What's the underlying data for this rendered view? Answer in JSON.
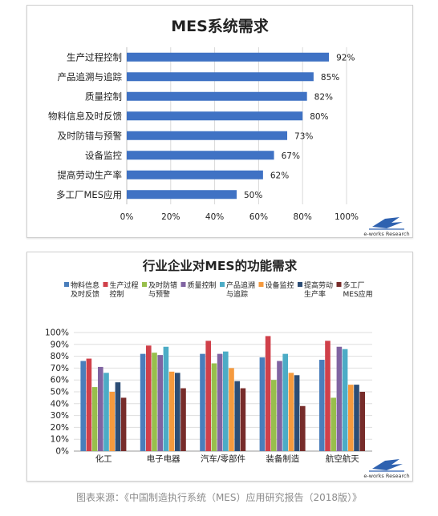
{
  "chart_data": [
    {
      "type": "bar",
      "orientation": "horizontal",
      "title": "MES系统需求",
      "categories": [
        "生产过程控制",
        "产品追溯与追踪",
        "质量控制",
        "物料信息及时反馈",
        "及时防错与预警",
        "设备监控",
        "提高劳动生产率",
        "多工厂MES应用"
      ],
      "values": [
        92,
        85,
        82,
        80,
        73,
        67,
        62,
        50
      ],
      "value_labels": [
        "92%",
        "85%",
        "82%",
        "80%",
        "73%",
        "67%",
        "62%",
        "50%"
      ],
      "xticks": [
        "0%",
        "20%",
        "40%",
        "60%",
        "80%",
        "100%"
      ],
      "xlim": [
        0,
        100
      ],
      "color": "#3f72c4",
      "grid": true
    },
    {
      "type": "bar",
      "title": "行业企业对MES的功能需求",
      "categories": [
        "化工",
        "电子电器",
        "汽车/零部件",
        "装备制造",
        "航空航天"
      ],
      "yticks": [
        "0%",
        "10%",
        "20%",
        "30%",
        "40%",
        "50%",
        "60%",
        "70%",
        "80%",
        "90%",
        "100%"
      ],
      "ylim": [
        0,
        100
      ],
      "legend_position": "top",
      "grid": true,
      "series": [
        {
          "name": "物料信息及时反馈",
          "legend_lines": [
            "物料信息",
            "及时反馈"
          ],
          "color": "#4a7ebb",
          "values": [
            76,
            82,
            82,
            79,
            77
          ]
        },
        {
          "name": "生产过程控制",
          "legend_lines": [
            "生产过程",
            "控制"
          ],
          "color": "#d0404a",
          "values": [
            78,
            89,
            93,
            97,
            93
          ]
        },
        {
          "name": "及时防错与预警",
          "legend_lines": [
            "及时防错",
            "与预警"
          ],
          "color": "#98bf4c",
          "values": [
            54,
            83,
            74,
            60,
            45
          ]
        },
        {
          "name": "质量控制",
          "legend_lines": [
            "质量控制"
          ],
          "color": "#8064a2",
          "values": [
            71,
            81,
            82,
            76,
            88
          ]
        },
        {
          "name": "产品追溯与追踪",
          "legend_lines": [
            "产品追溯",
            "与追踪"
          ],
          "color": "#4cacc6",
          "values": [
            66,
            88,
            84,
            82,
            86
          ]
        },
        {
          "name": "设备监控",
          "legend_lines": [
            "设备监控"
          ],
          "color": "#f59a3e",
          "values": [
            50,
            67,
            70,
            66,
            56
          ]
        },
        {
          "name": "提高劳动生产率",
          "legend_lines": [
            "提高劳动",
            "生产率"
          ],
          "color": "#2c4d75",
          "values": [
            58,
            66,
            59,
            64,
            56
          ]
        },
        {
          "name": "多工厂MES应用",
          "legend_lines": [
            "多工厂",
            "MES应用"
          ],
          "color": "#772c2a",
          "values": [
            45,
            53,
            53,
            38,
            50
          ]
        }
      ]
    }
  ],
  "logo": {
    "text": "e-works Research"
  },
  "caption": "图表来源：《中国制造执行系统（MES）应用研究报告（2018版）》"
}
